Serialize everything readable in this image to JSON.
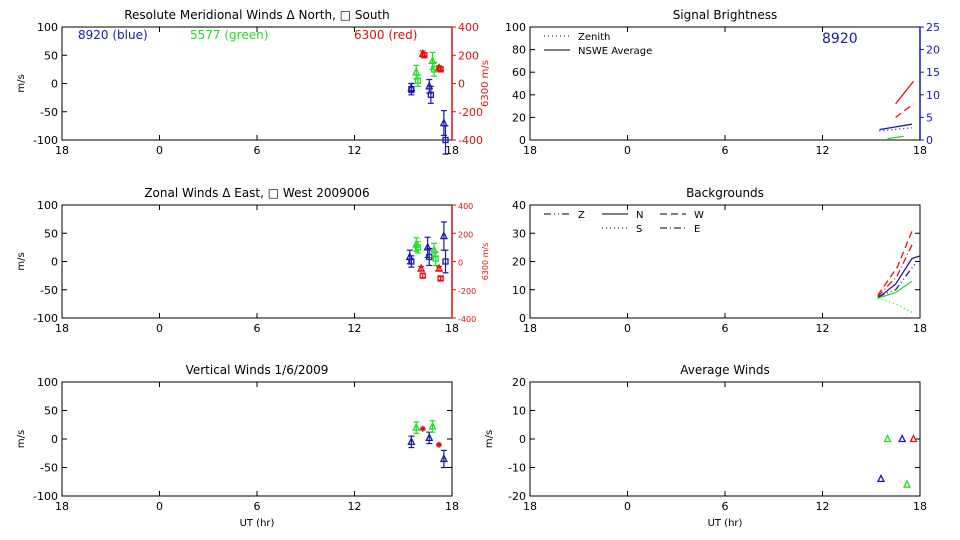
{
  "colors": {
    "blue": "#1a1aa8",
    "green": "#22dd22",
    "red": "#dd1111",
    "axis": "#000000"
  },
  "chart_data": [
    {
      "id": "meridional",
      "type": "scatter",
      "title": "Resolute Meridional Winds Δ North, □ South",
      "ylabel": "m/s",
      "xlabel": "",
      "ylim": [
        -100,
        100
      ],
      "yticks": [
        "100",
        "50",
        "0",
        "-50",
        "-100"
      ],
      "xticks": [
        "18",
        "0",
        "6",
        "12",
        "18"
      ],
      "xlim": [
        -6,
        18
      ],
      "right_axis": {
        "label": "6300 m/s",
        "ticks": [
          "400",
          "200",
          "0",
          "-200",
          "-400"
        ],
        "ylim": [
          -400,
          400
        ],
        "color": "red"
      },
      "legend_text": [
        {
          "text": "8920 (blue)",
          "color": "blue"
        },
        {
          "text": "5577 (green)",
          "color": "green"
        },
        {
          "text": "6300 (red)",
          "color": "red"
        }
      ],
      "series": [
        {
          "name": "8920 north",
          "color": "blue",
          "marker": "triangle",
          "axis": "left",
          "points": [
            [
              15.5,
              -8,
              8
            ],
            [
              16.6,
              -5,
              12
            ],
            [
              17.5,
              -70,
              22
            ]
          ]
        },
        {
          "name": "8920 south",
          "color": "blue",
          "marker": "square",
          "axis": "left",
          "points": [
            [
              15.5,
              -10,
              10
            ],
            [
              16.7,
              -20,
              15
            ],
            [
              17.6,
              -100,
              25
            ]
          ]
        },
        {
          "name": "5577 north",
          "color": "green",
          "marker": "triangle",
          "axis": "left",
          "points": [
            [
              15.8,
              20,
              12
            ],
            [
              16.8,
              40,
              15
            ]
          ]
        },
        {
          "name": "5577 south",
          "color": "green",
          "marker": "square",
          "axis": "left",
          "points": [
            [
              15.9,
              5,
              10
            ],
            [
              16.9,
              25,
              12
            ]
          ]
        },
        {
          "name": "6300 north",
          "color": "red",
          "marker": "triangle",
          "axis": "right",
          "points": [
            [
              16.2,
              210,
              20
            ],
            [
              17.2,
              110,
              15
            ]
          ]
        },
        {
          "name": "6300 south",
          "color": "red",
          "marker": "square",
          "axis": "right",
          "points": [
            [
              16.3,
              200,
              15
            ],
            [
              17.3,
              100,
              15
            ]
          ]
        }
      ]
    },
    {
      "id": "zonal",
      "type": "scatter",
      "title": "Zonal Winds Δ East, □ West 2009006",
      "ylabel": "m/s",
      "xlabel": "",
      "ylim": [
        -100,
        100
      ],
      "yticks": [
        "100",
        "50",
        "0",
        "-50",
        "-100"
      ],
      "xticks": [
        "18",
        "0",
        "6",
        "12",
        "18"
      ],
      "xlim": [
        -6,
        18
      ],
      "right_axis": {
        "label": "6300 m/s",
        "ticks": [
          "400",
          "200",
          "0",
          "-200",
          "-400"
        ],
        "ylim": [
          -400,
          400
        ],
        "color": "red"
      },
      "series": [
        {
          "name": "8920 east",
          "color": "blue",
          "marker": "triangle",
          "axis": "left",
          "points": [
            [
              15.4,
              8,
              12
            ],
            [
              16.5,
              25,
              18
            ],
            [
              17.5,
              45,
              25
            ]
          ]
        },
        {
          "name": "8920 west",
          "color": "blue",
          "marker": "square",
          "axis": "left",
          "points": [
            [
              15.5,
              0,
              10
            ],
            [
              16.6,
              8,
              15
            ],
            [
              17.6,
              0,
              20
            ]
          ]
        },
        {
          "name": "5577 east",
          "color": "green",
          "marker": "triangle",
          "axis": "left",
          "points": [
            [
              15.8,
              30,
              12
            ],
            [
              16.9,
              20,
              12
            ]
          ]
        },
        {
          "name": "5577 west",
          "color": "green",
          "marker": "square",
          "axis": "left",
          "points": [
            [
              15.9,
              25,
              10
            ],
            [
              17.0,
              5,
              12
            ]
          ]
        },
        {
          "name": "6300 east",
          "color": "red",
          "marker": "triangle",
          "axis": "right",
          "points": [
            [
              16.1,
              -50,
              15
            ],
            [
              17.2,
              -50,
              15
            ]
          ]
        },
        {
          "name": "6300 west",
          "color": "red",
          "marker": "square",
          "axis": "right",
          "points": [
            [
              16.2,
              -100,
              15
            ],
            [
              17.3,
              -120,
              12
            ]
          ]
        }
      ]
    },
    {
      "id": "vertical",
      "type": "scatter",
      "title": "Vertical Winds 1/6/2009",
      "ylabel": "m/s",
      "xlabel": "UT (hr)",
      "ylim": [
        -100,
        100
      ],
      "yticks": [
        "100",
        "50",
        "0",
        "-50",
        "-100"
      ],
      "xticks": [
        "18",
        "0",
        "6",
        "12",
        "18"
      ],
      "xlim": [
        -6,
        18
      ],
      "series": [
        {
          "name": "8920",
          "color": "blue",
          "marker": "triangle",
          "points": [
            [
              15.5,
              -5,
              10
            ],
            [
              16.6,
              2,
              10
            ],
            [
              17.5,
              -35,
              15
            ]
          ]
        },
        {
          "name": "5577",
          "color": "green",
          "marker": "triangle",
          "points": [
            [
              15.8,
              20,
              10
            ],
            [
              16.8,
              22,
              10
            ]
          ]
        },
        {
          "name": "6300",
          "color": "red",
          "marker": "star",
          "points": [
            [
              16.2,
              18,
              0
            ],
            [
              17.2,
              -10,
              0
            ]
          ]
        }
      ]
    },
    {
      "id": "brightness",
      "type": "line",
      "title": "Signal Brightness",
      "ylabel": "",
      "xlabel": "",
      "ylim": [
        0,
        100
      ],
      "yticks": [
        "100",
        "80",
        "60",
        "40",
        "20",
        "0"
      ],
      "xticks": [
        "18",
        "0",
        "6",
        "12",
        "18"
      ],
      "xlim": [
        -6,
        18
      ],
      "right_axis": {
        "label": "",
        "ticks": [
          "25",
          "20",
          "15",
          "10",
          "5",
          "0"
        ],
        "ylim": [
          0,
          25
        ],
        "color": "blue"
      },
      "annotation": {
        "text": "8920",
        "color": "blue"
      },
      "legend": [
        {
          "label": "Zenith",
          "style": "dotted"
        },
        {
          "label": "NSWE Average",
          "style": "solid"
        }
      ],
      "series": [
        {
          "name": "8920 NSWE",
          "color": "blue",
          "style": "solid",
          "axis": "right",
          "points": [
            [
              15.5,
              2.3
            ],
            [
              17.5,
              3.5
            ]
          ]
        },
        {
          "name": "8920 Zenith",
          "color": "blue",
          "style": "dotted",
          "axis": "right",
          "points": [
            [
              15.5,
              2.0
            ],
            [
              17.5,
              2.7
            ]
          ]
        },
        {
          "name": "6300 NSWE",
          "color": "red",
          "style": "solid",
          "axis": "right",
          "points": [
            [
              16.5,
              8
            ],
            [
              17.6,
              13
            ]
          ]
        },
        {
          "name": "6300 Zenith",
          "color": "red",
          "style": "dashed",
          "axis": "right",
          "points": [
            [
              16.5,
              5
            ],
            [
              17.6,
              8
            ]
          ]
        },
        {
          "name": "5577 NSWE",
          "color": "green",
          "style": "solid",
          "axis": "right",
          "points": [
            [
              16.0,
              0.3
            ],
            [
              17.0,
              0.8
            ]
          ]
        }
      ]
    },
    {
      "id": "backgrounds",
      "type": "line",
      "title": "Backgrounds",
      "ylabel": "",
      "xlabel": "",
      "ylim": [
        0,
        40
      ],
      "yticks": [
        "40",
        "30",
        "20",
        "10",
        "0"
      ],
      "xticks": [
        "18",
        "0",
        "6",
        "12",
        "18"
      ],
      "xlim": [
        -6,
        18
      ],
      "legend": [
        {
          "label": "Z",
          "style": "dashdotdot"
        },
        {
          "label": "N",
          "style": "solid"
        },
        {
          "label": "W",
          "style": "dashed"
        },
        {
          "label": "S",
          "style": "dotted"
        },
        {
          "label": "E",
          "style": "dashdot"
        }
      ],
      "series": [
        {
          "name": "8920 N",
          "color": "blue",
          "style": "solid",
          "points": [
            [
              15.4,
              7
            ],
            [
              16.5,
              12
            ],
            [
              17.5,
              21
            ],
            [
              18.0,
              22
            ]
          ]
        },
        {
          "name": "8920 Z",
          "color": "blue",
          "style": "dashdotdot",
          "points": [
            [
              15.4,
              7.5
            ],
            [
              16.5,
              10
            ],
            [
              17.8,
              20
            ]
          ]
        },
        {
          "name": "6300 W",
          "color": "red",
          "style": "dashed",
          "points": [
            [
              15.4,
              8
            ],
            [
              16.6,
              18
            ],
            [
              17.6,
              32
            ]
          ]
        },
        {
          "name": "6300 E",
          "color": "red",
          "style": "dashdot",
          "points": [
            [
              15.4,
              7.5
            ],
            [
              16.6,
              15
            ],
            [
              17.6,
              27
            ]
          ]
        },
        {
          "name": "5577 S",
          "color": "green",
          "style": "dotted",
          "points": [
            [
              15.4,
              7
            ],
            [
              16.5,
              5
            ],
            [
              17.5,
              2
            ]
          ]
        },
        {
          "name": "5577 N",
          "color": "green",
          "style": "solid",
          "points": [
            [
              15.4,
              7
            ],
            [
              16.5,
              9
            ],
            [
              17.5,
              13
            ]
          ]
        }
      ]
    },
    {
      "id": "average",
      "type": "scatter",
      "title": "Average Winds",
      "ylabel": "m/s",
      "xlabel": "UT (hr)",
      "ylim": [
        -20,
        20
      ],
      "yticks": [
        "20",
        "10",
        "0",
        "-10",
        "-20"
      ],
      "xticks": [
        "18",
        "0",
        "6",
        "12",
        "18"
      ],
      "xlim": [
        -6,
        18
      ],
      "series": [
        {
          "name": "8920",
          "color": "blue",
          "marker": "triangle",
          "points": [
            [
              15.6,
              -14,
              0
            ],
            [
              16.9,
              0,
              0
            ]
          ]
        },
        {
          "name": "5577",
          "color": "green",
          "marker": "triangle",
          "points": [
            [
              16.0,
              0,
              0
            ],
            [
              17.2,
              -16,
              0
            ]
          ]
        },
        {
          "name": "6300",
          "color": "red",
          "marker": "triangle",
          "points": [
            [
              17.6,
              0,
              0
            ]
          ]
        }
      ]
    }
  ]
}
